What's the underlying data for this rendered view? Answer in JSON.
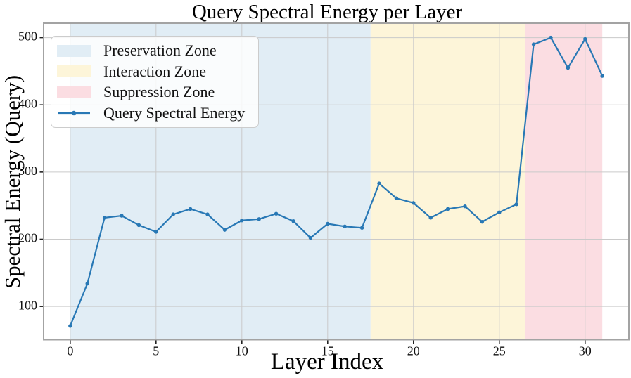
{
  "chart_data": {
    "type": "line",
    "title": "Query Spectral Energy per Layer",
    "xlabel": "Layer Index",
    "ylabel": "Spectral Energy (Query)",
    "x": [
      0,
      1,
      2,
      3,
      4,
      5,
      6,
      7,
      8,
      9,
      10,
      11,
      12,
      13,
      14,
      15,
      16,
      17,
      18,
      19,
      20,
      21,
      22,
      23,
      24,
      25,
      26,
      27,
      28,
      29,
      30,
      31
    ],
    "series": [
      {
        "name": "Query Spectral Energy",
        "color": "#2878b5",
        "marker": "circle",
        "values": [
          71,
          134,
          232,
          235,
          221,
          211,
          237,
          245,
          237,
          214,
          228,
          230,
          238,
          227,
          202,
          223,
          219,
          217,
          283,
          261,
          254,
          232,
          245,
          249,
          226,
          240,
          252,
          490,
          500,
          455,
          498,
          443
        ]
      }
    ],
    "zones": [
      {
        "name": "Preservation Zone",
        "from": 0,
        "to": 17.5,
        "color": "#e1edf5"
      },
      {
        "name": "Interaction Zone",
        "from": 17.5,
        "to": 26.5,
        "color": "#fdf5d9"
      },
      {
        "name": "Suppression Zone",
        "from": 26.5,
        "to": 31,
        "color": "#fbdde2"
      }
    ],
    "xlim": [
      -1.55,
      32.55
    ],
    "ylim": [
      50.5,
      521.5
    ],
    "xticks": [
      0,
      5,
      10,
      15,
      20,
      25,
      30
    ],
    "yticks": [
      100,
      200,
      300,
      400,
      500
    ],
    "grid": true,
    "legend_position": "upper left",
    "colors": {
      "grid": "#cacaca",
      "spine": "#a3a3a3",
      "tick": "#222222",
      "background": "#ffffff"
    }
  }
}
